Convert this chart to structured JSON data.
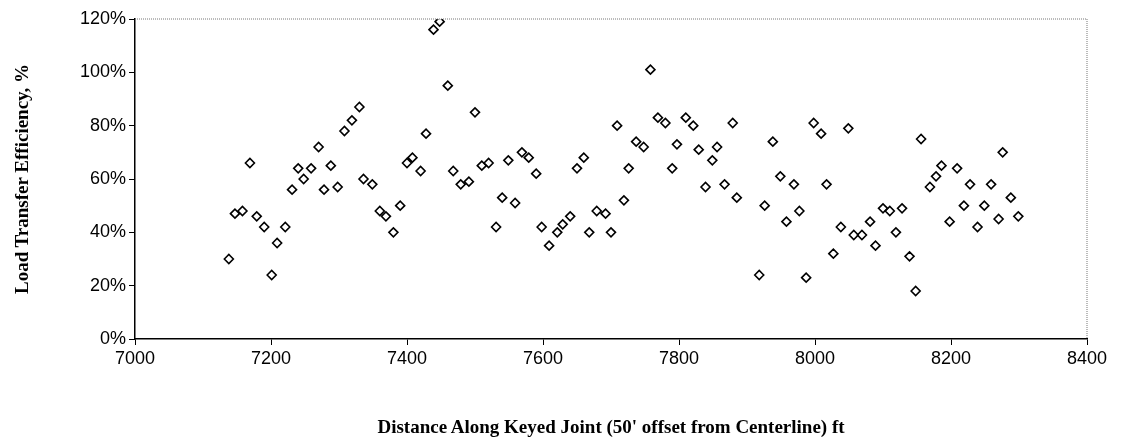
{
  "chart_data": {
    "type": "scatter",
    "xlabel": "Distance Along Keyed Joint (50' offset from Centerline) ft",
    "ylabel": "Load Transfer Efficiency, %",
    "x": [
      7138,
      7147,
      7158,
      7169,
      7179,
      7190,
      7201,
      7209,
      7221,
      7231,
      7240,
      7248,
      7259,
      7270,
      7278,
      7288,
      7298,
      7308,
      7319,
      7330,
      7336,
      7349,
      7360,
      7369,
      7380,
      7390,
      7400,
      7408,
      7420,
      7428,
      7439,
      7448,
      7460,
      7468,
      7479,
      7491,
      7500,
      7510,
      7520,
      7531,
      7540,
      7549,
      7559,
      7569,
      7579,
      7590,
      7598,
      7609,
      7621,
      7629,
      7640,
      7650,
      7660,
      7668,
      7679,
      7692,
      7700,
      7709,
      7719,
      7726,
      7737,
      7748,
      7758,
      7769,
      7780,
      7790,
      7797,
      7810,
      7821,
      7829,
      7839,
      7849,
      7856,
      7867,
      7879,
      7885,
      7918,
      7926,
      7938,
      7949,
      7958,
      7969,
      7977,
      7987,
      7998,
      8009,
      8017,
      8027,
      8038,
      8049,
      8057,
      8069,
      8081,
      8089,
      8100,
      8110,
      8119,
      8128,
      8139,
      8148,
      8156,
      8169,
      8178,
      8186,
      8198,
      8209,
      8219,
      8228,
      8239,
      8249,
      8259,
      8270,
      8276,
      8288,
      8299
    ],
    "series": [
      {
        "color": "#000000",
        "values": [
          30,
          47,
          48,
          66,
          46,
          42,
          24,
          36,
          42,
          56,
          64,
          60,
          64,
          72,
          56,
          65,
          57,
          78,
          82,
          87,
          60,
          58,
          48,
          46,
          40,
          50,
          66,
          68,
          63,
          77,
          116,
          119,
          95,
          63,
          58,
          59,
          85,
          65,
          66,
          42,
          53,
          67,
          51,
          70,
          68,
          62,
          42,
          35,
          40,
          43,
          46,
          64,
          68,
          40,
          48,
          47,
          40,
          80,
          52,
          64,
          74,
          72,
          101,
          83,
          81,
          64,
          73,
          83,
          80,
          71,
          57,
          67,
          72,
          58,
          81,
          53,
          24,
          50,
          74,
          61,
          44,
          58,
          48,
          23,
          81,
          77,
          58,
          32,
          42,
          79,
          39,
          39,
          44,
          35,
          49,
          48,
          40,
          49,
          31,
          18,
          75,
          57,
          61,
          65,
          44,
          64,
          50,
          58,
          42,
          50,
          58,
          45,
          70,
          53,
          46
        ]
      }
    ],
    "xlim": [
      7000,
      8400
    ],
    "xticks": [
      7000,
      7200,
      7400,
      7600,
      7800,
      8000,
      8200,
      8400
    ],
    "ylim": [
      0,
      120
    ],
    "yticks": [
      {
        "value": 0,
        "label": "0%"
      },
      {
        "value": 20,
        "label": "20%"
      },
      {
        "value": 40,
        "label": "40%"
      },
      {
        "value": 60,
        "label": "60%"
      },
      {
        "value": 80,
        "label": "80%"
      },
      {
        "value": 100,
        "label": "100%"
      },
      {
        "value": 120,
        "label": "120%"
      }
    ],
    "marker": "diamond",
    "grid": false,
    "legend": false
  }
}
